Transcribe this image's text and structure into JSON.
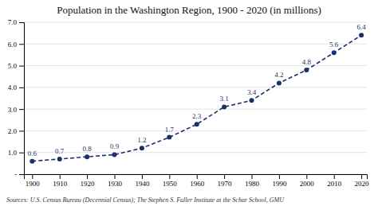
{
  "chart_data": {
    "type": "line",
    "title": "Population in the Washington Region, 1900 - 2020 (in millions)",
    "x": [
      1900,
      1910,
      1920,
      1930,
      1940,
      1950,
      1960,
      1970,
      1980,
      1990,
      2000,
      2010,
      2020
    ],
    "values": [
      0.6,
      0.7,
      0.8,
      0.9,
      1.2,
      1.7,
      2.3,
      3.1,
      3.4,
      4.2,
      4.8,
      5.6,
      6.4
    ],
    "color": "#1c2f6b",
    "marker": "circle",
    "line_style": "dashed",
    "data_labels": true,
    "grid": true,
    "xlim": [
      1897,
      2022
    ],
    "xticks": [
      1900,
      1910,
      1920,
      1930,
      1940,
      1950,
      1960,
      1970,
      1980,
      1990,
      2000,
      2010,
      2020
    ],
    "ylim": [
      0,
      7.0
    ],
    "yticks": [
      {
        "value": 0.0,
        "label": "-"
      },
      {
        "value": 1.0,
        "label": "1.0"
      },
      {
        "value": 2.0,
        "label": "2.0"
      },
      {
        "value": 3.0,
        "label": "3.0"
      },
      {
        "value": 4.0,
        "label": "4.0"
      },
      {
        "value": 5.0,
        "label": "5.0"
      },
      {
        "value": 6.0,
        "label": "6.0"
      },
      {
        "value": 7.0,
        "label": "7.0"
      }
    ],
    "source": "Sources: U.S. Census Bureau (Decennial Census); The Stephen S. Fuller Institute at the Schar School, GMU"
  }
}
